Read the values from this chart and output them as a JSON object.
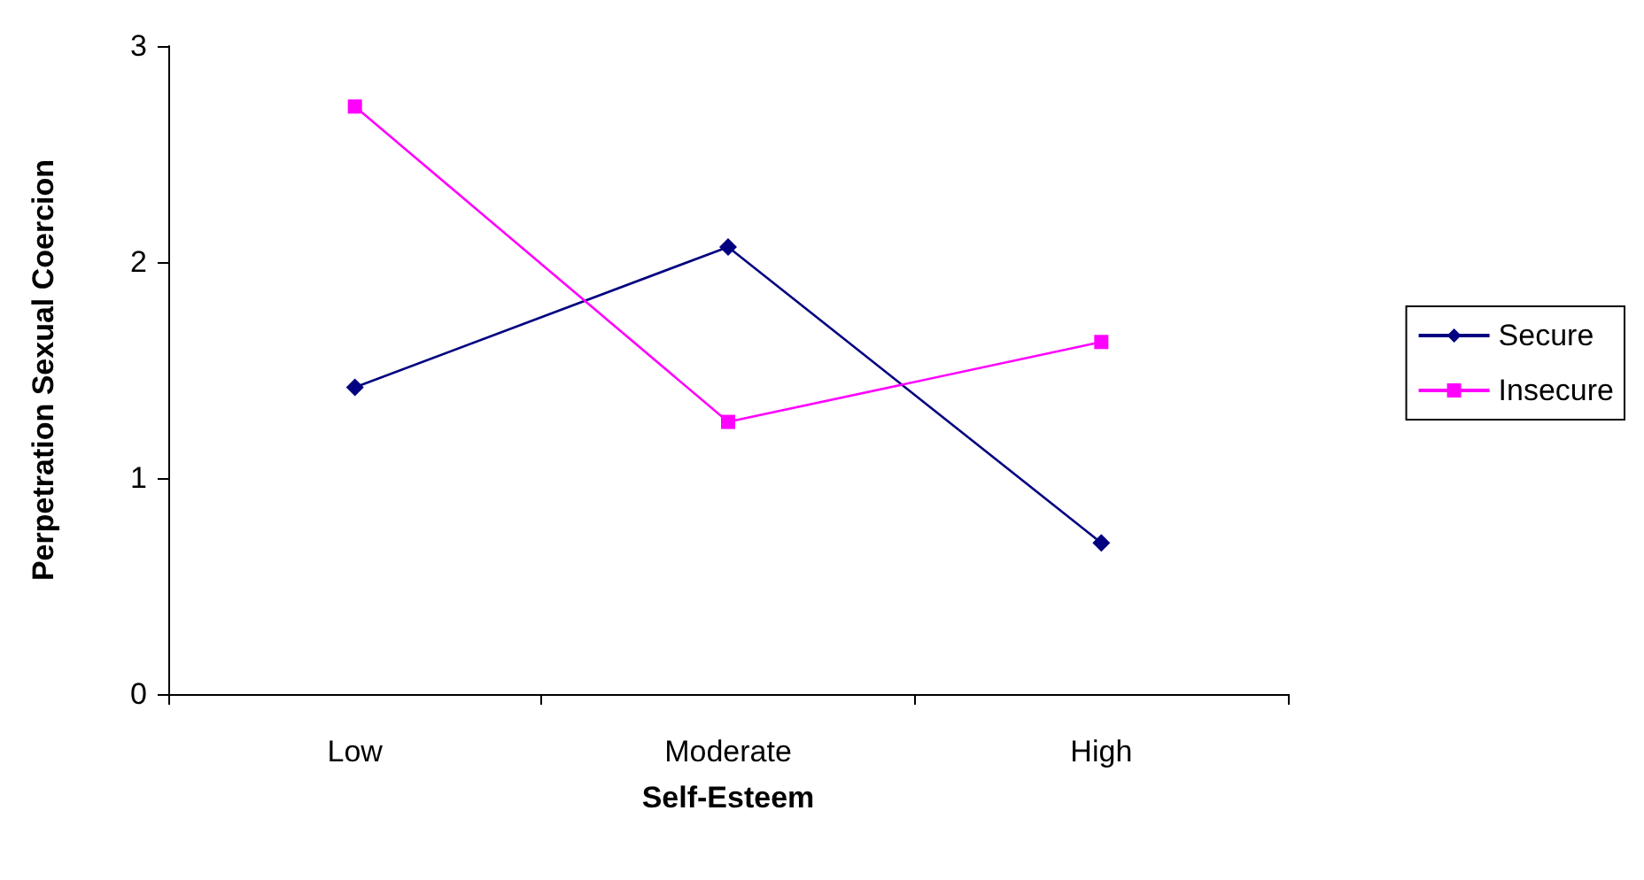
{
  "chart_data": {
    "type": "line",
    "xlabel": "Self-Esteem",
    "ylabel": "Perpetration Sexual Coercion",
    "categories": [
      "Low",
      "Moderate",
      "High"
    ],
    "series": [
      {
        "name": "Secure",
        "color": "#000080",
        "values": [
          1.42,
          2.07,
          0.7
        ],
        "marker": "diamond"
      },
      {
        "name": "Insecure",
        "color": "#ff00ff",
        "values": [
          2.72,
          1.26,
          1.63
        ],
        "marker": "square"
      }
    ],
    "ylim": [
      0,
      3
    ],
    "yticks": [
      0,
      1,
      2,
      3
    ],
    "grid": false,
    "legend": "right",
    "line_style": "solid"
  }
}
